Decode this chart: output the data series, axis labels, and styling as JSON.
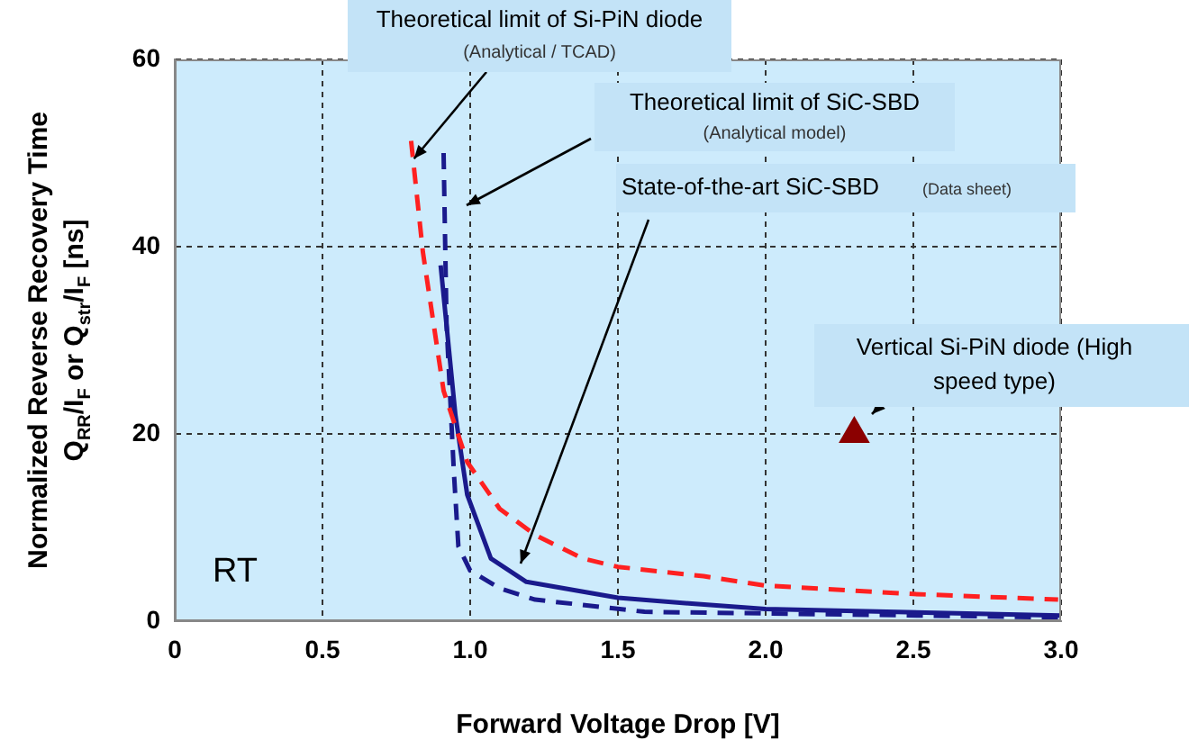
{
  "chart_data": {
    "type": "line",
    "xlabel": "Forward Voltage Drop [V]",
    "ylabel": "Normalized Reverse Recovery Time\nQ$_{RR}$/I$_{F}$ or Q$_{str}$/I$_{F}$ [ns]",
    "xlim": [
      0,
      3
    ],
    "xticks": [
      0,
      0.5,
      {
        "value": 1,
        "label": "1.0"
      },
      1.5,
      {
        "value": 2,
        "label": "2.0"
      },
      2.5,
      {
        "value": 3,
        "label": "3.0"
      }
    ],
    "ylim": [
      0,
      60
    ],
    "yticks": [
      0,
      20,
      40,
      60
    ],
    "grid": true,
    "series": [
      {
        "color": "#ff2020",
        "line_style": "dashed",
        "marker": "none",
        "x": [
          0.8,
          0.84,
          0.91,
          0.99,
          1.1,
          1.22,
          1.38,
          1.5,
          1.79,
          2.0,
          2.5,
          2.99
        ],
        "values": [
          51.3,
          39.4,
          24.6,
          17,
          12,
          9.2,
          6.7,
          5.8,
          4.8,
          3.8,
          2.9,
          2.3
        ]
      },
      {
        "color": "#1a1a8c",
        "line_style": "dashed",
        "marker": "none",
        "x": [
          0.91,
          0.92,
          0.945,
          0.96,
          1.0,
          1.1,
          1.22,
          1.59,
          3.0
        ],
        "values": [
          50,
          31.7,
          15.8,
          8,
          5.4,
          3.5,
          2.3,
          1.0,
          0.4
        ]
      },
      {
        "color": "#1a1a8c",
        "line_style": "solid",
        "marker": "none",
        "x": [
          0.9,
          0.95,
          0.99,
          1.07,
          1.19,
          1.5,
          1.74,
          2.0,
          3.0
        ],
        "values": [
          38,
          22,
          13.5,
          6.7,
          4.2,
          2.5,
          1.9,
          1.3,
          0.6
        ]
      },
      {
        "type": "scatter",
        "color": "#8b0000",
        "marker": "triangle",
        "x": [
          2.3
        ],
        "values": [
          20
        ]
      }
    ],
    "annotations": [
      "Theoretical limit of Si-PiN diode",
      {
        "text": "(Analytical / TCAD)",
        "x": 0.81,
        "y": 49.4
      },
      "Theoretical limit of SiC-SBD",
      "(Analytical model)",
      "State-of-the-art SiC-SBD",
      "(Data sheet)",
      "Vertical Si-PiN diode (High speed type)",
      "RT"
    ]
  }
}
